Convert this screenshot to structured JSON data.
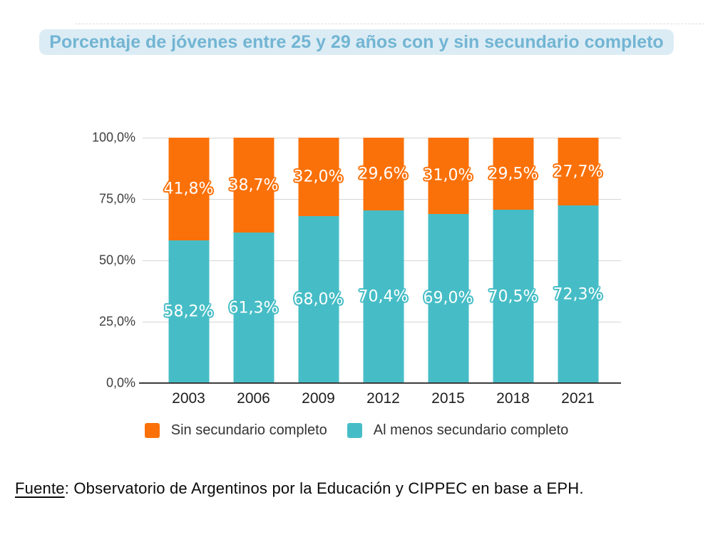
{
  "title": "Porcentaje de jóvenes entre 25 y 29 años con y sin secundario completo",
  "colors": {
    "sin_secundario": "#FB7109",
    "al_menos_secundario": "#46BDC6",
    "title_text": "#72B5D3",
    "title_highlight": "#DCECF5",
    "gridline": "#D6D6D6",
    "axis_line": "#3D3D3D",
    "y_tick_text": "#3F3F3F",
    "x_tick_text": "#1E1E1E",
    "legend_text": "#333333",
    "source_text": "#0A0A0A",
    "data_label_text": "#FFFFFF"
  },
  "chart_data": {
    "type": "bar",
    "stacked": true,
    "title": "Porcentaje de jóvenes entre 25 y 29 años con y sin secundario completo",
    "categories": [
      "2003",
      "2006",
      "2009",
      "2012",
      "2015",
      "2018",
      "2021"
    ],
    "series": [
      {
        "name": "Sin secundario completo",
        "color": "#FB7109",
        "position": "top",
        "values": [
          41.8,
          38.7,
          32.0,
          29.6,
          31.0,
          29.5,
          27.7
        ],
        "labels": [
          "41,8%",
          "38,7%",
          "32,0%",
          "29,6%",
          "31,0%",
          "29,5%",
          "27,7%"
        ]
      },
      {
        "name": "Al menos secundario completo",
        "color": "#46BDC6",
        "position": "bottom",
        "values": [
          58.2,
          61.3,
          68.0,
          70.4,
          69.0,
          70.5,
          72.3
        ],
        "labels": [
          "58,2%",
          "61,3%",
          "68,0%",
          "70,4%",
          "69,0%",
          "70,5%",
          "72,3%"
        ]
      }
    ],
    "xlabel": "",
    "ylabel": "",
    "ylim": [
      0,
      100
    ],
    "y_ticks": [
      {
        "value": 100,
        "label": "100,0%"
      },
      {
        "value": 75,
        "label": "75,0%"
      },
      {
        "value": 50,
        "label": "50,0%"
      },
      {
        "value": 25,
        "label": "25,0%"
      },
      {
        "value": 0,
        "label": "0,0%"
      }
    ],
    "grid": true,
    "legend_position": "bottom"
  },
  "legend": [
    {
      "label": "Sin secundario completo",
      "color": "#FB7109"
    },
    {
      "label": "Al menos secundario completo",
      "color": "#46BDC6"
    }
  ],
  "source": {
    "label": "Fuente",
    "text": ": Observatorio de Argentinos por la Educación y CIPPEC en base a EPH."
  }
}
